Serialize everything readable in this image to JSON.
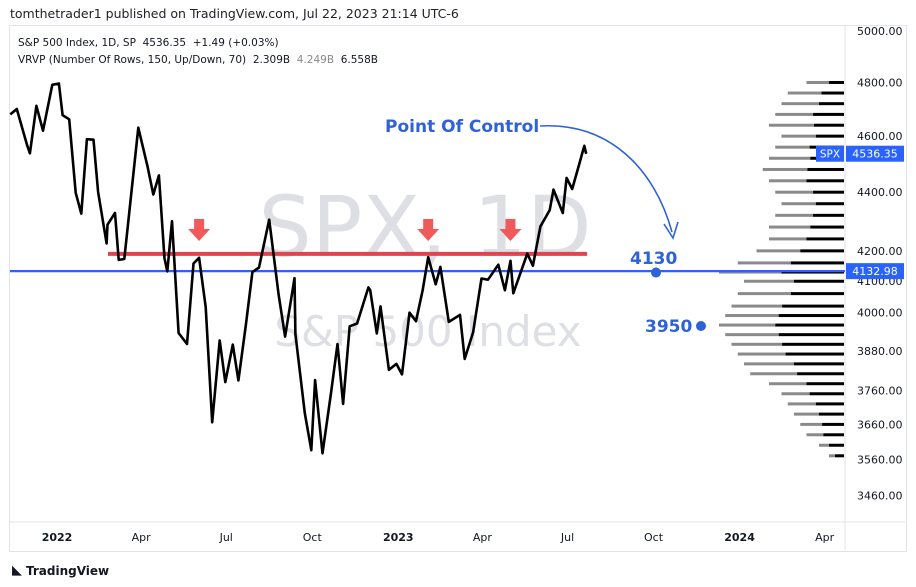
{
  "header": {
    "published": "tomthetrader1 published on TradingView.com, Jul 22, 2023 21:14 UTC-6"
  },
  "legend": {
    "symbol": "S&P 500 Index, 1D, SP",
    "price": "4536.35",
    "change": "+1.49 (+0.03%)",
    "vrvp": "VRVP (Number Of Rows, 150, Up/Down, 70)",
    "up": "2.309B",
    "down": "4.249B",
    "total": "6.558B"
  },
  "watermark": {
    "line1": "SPX, 1D",
    "line2": "S&P 500 Index"
  },
  "footer": {
    "brand": "TradingView"
  },
  "chart_data": {
    "type": "line",
    "yscale": "log",
    "ylim": [
      3400,
      5050
    ],
    "yticks": [
      5000,
      4800,
      4600,
      4400,
      4200,
      4100,
      4000,
      3880,
      3760,
      3660,
      3560,
      3460
    ],
    "xticks": [
      {
        "label": "2022",
        "date": "2022-01-01"
      },
      {
        "label": "Apr",
        "date": "2022-04-01"
      },
      {
        "label": "Jul",
        "date": "2022-07-01"
      },
      {
        "label": "Oct",
        "date": "2022-10-01"
      },
      {
        "label": "2023",
        "date": "2023-01-01"
      },
      {
        "label": "Apr",
        "date": "2023-04-01"
      },
      {
        "label": "Jul",
        "date": "2023-07-01"
      },
      {
        "label": "Oct",
        "date": "2023-10-01"
      },
      {
        "label": "2024",
        "date": "2024-01-01"
      },
      {
        "label": "Apr",
        "date": "2024-04-01"
      }
    ],
    "series": [
      {
        "color": "#000000",
        "points": [
          [
            "2021-11-12",
            4680
          ],
          [
            "2021-11-19",
            4700
          ],
          [
            "2021-11-30",
            4567
          ],
          [
            "2021-12-03",
            4538
          ],
          [
            "2021-12-10",
            4712
          ],
          [
            "2021-12-17",
            4620
          ],
          [
            "2021-12-27",
            4791
          ],
          [
            "2022-01-03",
            4796
          ],
          [
            "2022-01-07",
            4677
          ],
          [
            "2022-01-14",
            4662
          ],
          [
            "2022-01-21",
            4398
          ],
          [
            "2022-01-27",
            4326
          ],
          [
            "2022-02-02",
            4589
          ],
          [
            "2022-02-09",
            4587
          ],
          [
            "2022-02-14",
            4401
          ],
          [
            "2022-02-23",
            4225
          ],
          [
            "2022-02-24",
            4288
          ],
          [
            "2022-03-04",
            4328
          ],
          [
            "2022-03-08",
            4170
          ],
          [
            "2022-03-14",
            4173
          ],
          [
            "2022-03-29",
            4631
          ],
          [
            "2022-04-08",
            4488
          ],
          [
            "2022-04-14",
            4392
          ],
          [
            "2022-04-20",
            4459
          ],
          [
            "2022-04-26",
            4175
          ],
          [
            "2022-04-29",
            4132
          ],
          [
            "2022-05-04",
            4300
          ],
          [
            "2022-05-11",
            3935
          ],
          [
            "2022-05-20",
            3901
          ],
          [
            "2022-05-27",
            4158
          ],
          [
            "2022-06-02",
            4177
          ],
          [
            "2022-06-09",
            4017
          ],
          [
            "2022-06-16",
            3666
          ],
          [
            "2022-06-24",
            3912
          ],
          [
            "2022-06-30",
            3785
          ],
          [
            "2022-07-08",
            3899
          ],
          [
            "2022-07-14",
            3790
          ],
          [
            "2022-07-22",
            3961
          ],
          [
            "2022-07-29",
            4130
          ],
          [
            "2022-08-05",
            4145
          ],
          [
            "2022-08-16",
            4305
          ],
          [
            "2022-08-26",
            4057
          ],
          [
            "2022-09-02",
            3924
          ],
          [
            "2022-09-12",
            4110
          ],
          [
            "2022-09-13",
            3932
          ],
          [
            "2022-09-23",
            3693
          ],
          [
            "2022-09-30",
            3586
          ],
          [
            "2022-10-04",
            3791
          ],
          [
            "2022-10-12",
            3577
          ],
          [
            "2022-10-21",
            3752
          ],
          [
            "2022-10-28",
            3901
          ],
          [
            "2022-11-03",
            3720
          ],
          [
            "2022-11-10",
            3956
          ],
          [
            "2022-11-18",
            3965
          ],
          [
            "2022-11-30",
            4080
          ],
          [
            "2022-12-02",
            4071
          ],
          [
            "2022-12-09",
            3934
          ],
          [
            "2022-12-13",
            4019
          ],
          [
            "2022-12-22",
            3822
          ],
          [
            "2022-12-30",
            3840
          ],
          [
            "2023-01-05",
            3808
          ],
          [
            "2023-01-13",
            3999
          ],
          [
            "2023-01-20",
            3972
          ],
          [
            "2023-01-27",
            4070
          ],
          [
            "2023-02-02",
            4179
          ],
          [
            "2023-02-10",
            4090
          ],
          [
            "2023-02-15",
            4147
          ],
          [
            "2023-02-24",
            3970
          ],
          [
            "2023-03-02",
            3981
          ],
          [
            "2023-03-08",
            3992
          ],
          [
            "2023-03-13",
            3855
          ],
          [
            "2023-03-22",
            3937
          ],
          [
            "2023-03-31",
            4109
          ],
          [
            "2023-04-07",
            4105
          ],
          [
            "2023-04-18",
            4154
          ],
          [
            "2023-04-25",
            4071
          ],
          [
            "2023-05-01",
            4167
          ],
          [
            "2023-05-04",
            4061
          ],
          [
            "2023-05-19",
            4191
          ],
          [
            "2023-05-25",
            4151
          ],
          [
            "2023-06-02",
            4282
          ],
          [
            "2023-06-12",
            4338
          ],
          [
            "2023-06-16",
            4409
          ],
          [
            "2023-06-26",
            4328
          ],
          [
            "2023-06-30",
            4450
          ],
          [
            "2023-07-06",
            4411
          ],
          [
            "2023-07-14",
            4505
          ],
          [
            "2023-07-19",
            4565
          ],
          [
            "2023-07-21",
            4536
          ]
        ]
      }
    ],
    "resistance": {
      "value": 4190,
      "from": "2022-03-01",
      "to": "2023-07-22",
      "color": "#e0444f"
    },
    "arrows": [
      {
        "date": "2022-06-02",
        "value": 4260
      },
      {
        "date": "2023-02-02",
        "value": 4260
      },
      {
        "date": "2023-05-01",
        "value": 4260
      }
    ],
    "poc_line": {
      "value": 4132.98,
      "label": "4132.98",
      "color": "#2962ff"
    },
    "last_price": {
      "value": 4536.35,
      "label": "4536.35",
      "tag": "SPX"
    },
    "annotations": [
      {
        "text": "Point Of Control"
      },
      {
        "text": "4130",
        "value": 4130
      },
      {
        "text": "3950",
        "value": 3950
      }
    ],
    "volume_profile": [
      [
        4800,
        0.3,
        0.4
      ],
      [
        4760,
        0.45,
        0.4
      ],
      [
        4720,
        0.5,
        0.4
      ],
      [
        4680,
        0.55,
        0.45
      ],
      [
        4640,
        0.6,
        0.4
      ],
      [
        4600,
        0.5,
        0.45
      ],
      [
        4560,
        0.55,
        0.5
      ],
      [
        4520,
        0.6,
        0.45
      ],
      [
        4480,
        0.65,
        0.45
      ],
      [
        4440,
        0.6,
        0.5
      ],
      [
        4400,
        0.55,
        0.45
      ],
      [
        4360,
        0.5,
        0.45
      ],
      [
        4320,
        0.55,
        0.45
      ],
      [
        4280,
        0.6,
        0.45
      ],
      [
        4240,
        0.6,
        0.5
      ],
      [
        4200,
        0.7,
        0.5
      ],
      [
        4160,
        0.85,
        0.5
      ],
      [
        4130,
        1.0,
        0.5
      ],
      [
        4100,
        0.8,
        0.5
      ],
      [
        4060,
        0.85,
        0.5
      ],
      [
        4020,
        0.9,
        0.55
      ],
      [
        3990,
        0.95,
        0.55
      ],
      [
        3960,
        1.0,
        0.55
      ],
      [
        3930,
        0.95,
        0.55
      ],
      [
        3900,
        0.9,
        0.55
      ],
      [
        3870,
        0.85,
        0.55
      ],
      [
        3840,
        0.8,
        0.5
      ],
      [
        3810,
        0.75,
        0.5
      ],
      [
        3780,
        0.6,
        0.5
      ],
      [
        3750,
        0.5,
        0.55
      ],
      [
        3720,
        0.45,
        0.5
      ],
      [
        3690,
        0.4,
        0.5
      ],
      [
        3660,
        0.35,
        0.5
      ],
      [
        3630,
        0.3,
        0.55
      ],
      [
        3600,
        0.2,
        0.6
      ],
      [
        3570,
        0.12,
        0.6
      ]
    ]
  }
}
